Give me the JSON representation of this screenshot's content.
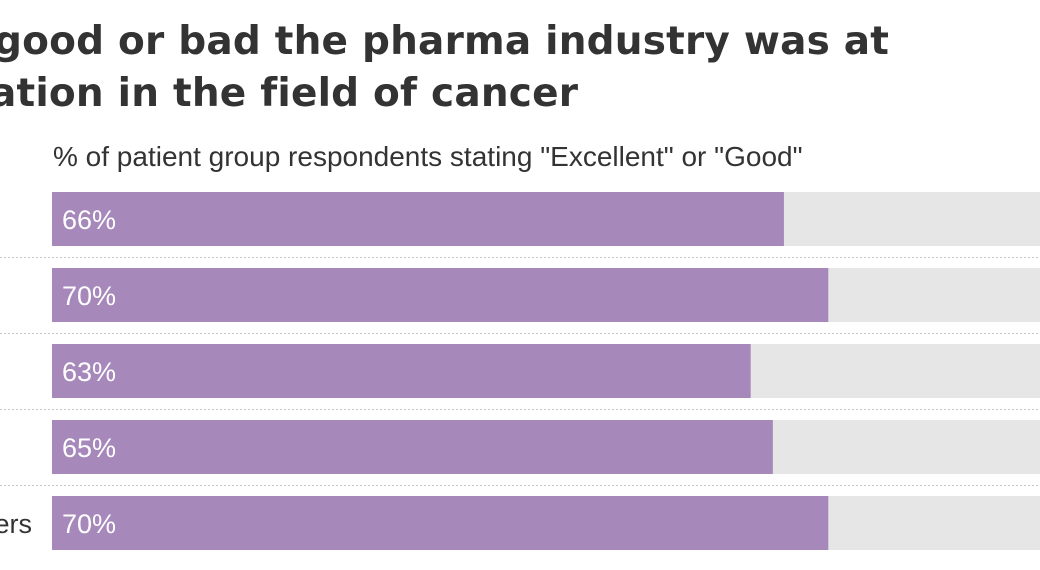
{
  "chart_data": {
    "type": "bar",
    "orientation": "horizontal",
    "title_lines": [
      "good or bad the pharma industry was at",
      "ation in the field of cancer"
    ],
    "subtitle": "% of patient group respondents stating \"Excellent\" or \"Good\"",
    "categories": [
      "",
      "",
      "",
      "",
      "ers"
    ],
    "values": [
      66,
      70,
      63,
      65,
      70
    ],
    "value_labels": [
      "66%",
      "70%",
      "63%",
      "65%",
      "70%"
    ],
    "xlim": [
      0,
      100
    ],
    "grid": false,
    "legend": "none",
    "colors": {
      "bar": "#a688bb",
      "track": "#e6e6e6",
      "value_label": "#ffffff",
      "text": "#333333",
      "separator": "#c8c8c8"
    }
  }
}
